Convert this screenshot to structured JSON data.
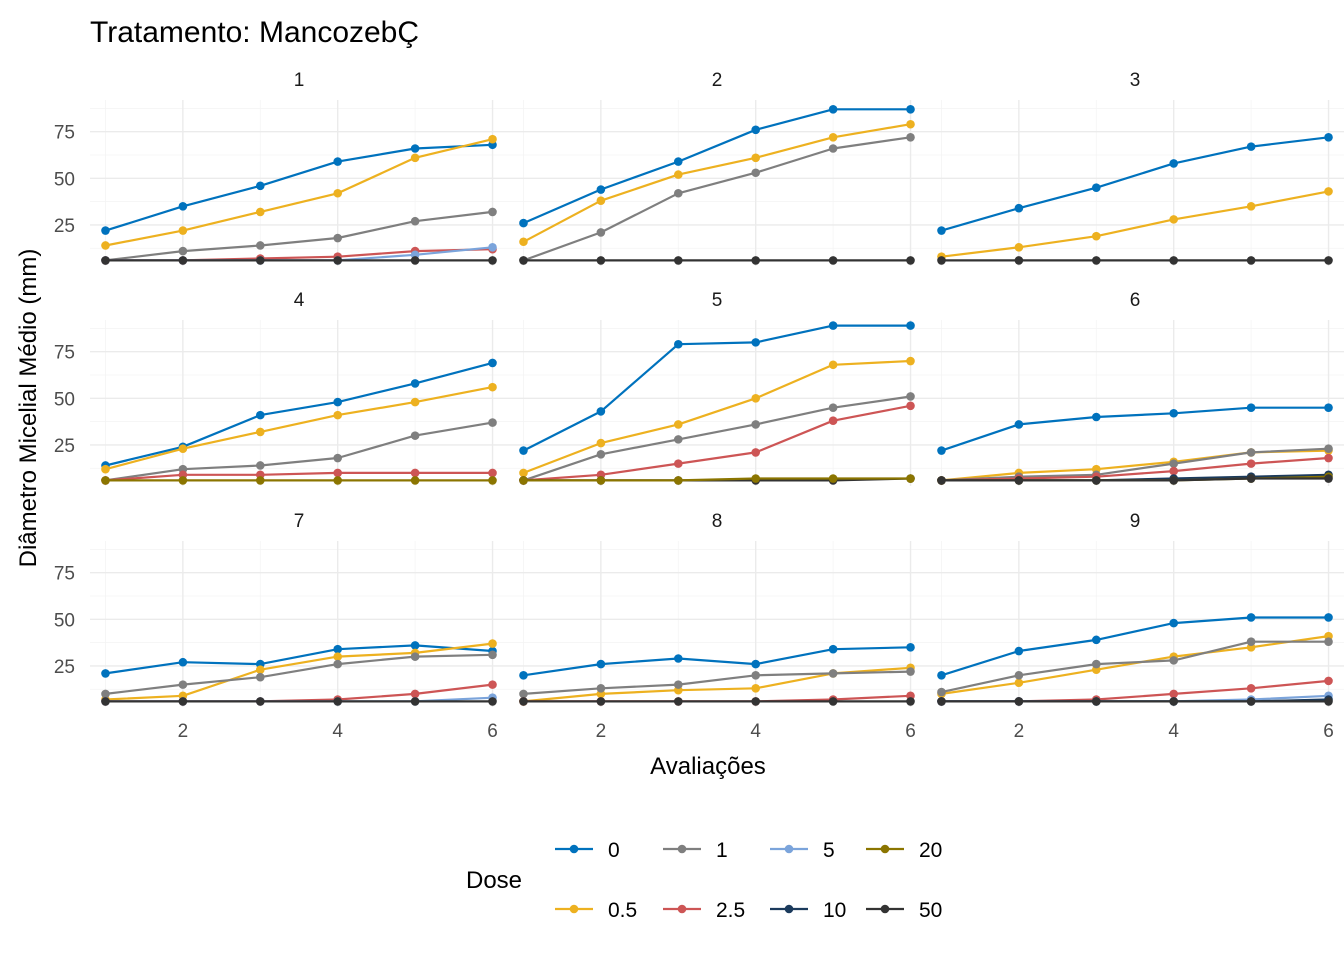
{
  "chart_data": {
    "type": "line",
    "title": "Tratamento: MancozebÇ",
    "xlabel": "Avaliações",
    "ylabel": "Diâmetro Micelial Médio (mm)",
    "xlim": [
      0.8,
      6.2
    ],
    "ylim": [
      3,
      92
    ],
    "x_ticks": [
      2,
      4,
      6
    ],
    "y_ticks": [
      25,
      50,
      75
    ],
    "grid": true,
    "legend": {
      "title": "Dose",
      "position": "bottom",
      "entries": [
        {
          "label": "0",
          "color": "#0072BD"
        },
        {
          "label": "0.5",
          "color": "#EDB120"
        },
        {
          "label": "1",
          "color": "#7F7F7F"
        },
        {
          "label": "2.5",
          "color": "#CD5555"
        },
        {
          "label": "5",
          "color": "#7BA4DB"
        },
        {
          "label": "10",
          "color": "#1B3A5C"
        },
        {
          "label": "20",
          "color": "#8B7500"
        },
        {
          "label": "50",
          "color": "#333333"
        }
      ]
    },
    "x": [
      1,
      2,
      3,
      4,
      5,
      6
    ],
    "panels": [
      {
        "label": "1",
        "series": [
          {
            "dose": "0",
            "values": [
              22,
              35,
              46,
              59,
              66,
              68
            ]
          },
          {
            "dose": "0.5",
            "values": [
              14,
              22,
              32,
              42,
              61,
              71
            ]
          },
          {
            "dose": "1",
            "values": [
              6,
              11,
              14,
              18,
              27,
              32
            ]
          },
          {
            "dose": "2.5",
            "values": [
              6,
              6,
              7,
              8,
              11,
              12
            ]
          },
          {
            "dose": "5",
            "values": [
              6,
              6,
              6,
              6,
              9,
              13
            ]
          },
          {
            "dose": "50",
            "values": [
              6,
              6,
              6,
              6,
              6,
              6
            ]
          }
        ]
      },
      {
        "label": "2",
        "series": [
          {
            "dose": "0",
            "values": [
              26,
              44,
              59,
              76,
              87,
              87
            ]
          },
          {
            "dose": "0.5",
            "values": [
              16,
              38,
              52,
              61,
              72,
              79
            ]
          },
          {
            "dose": "1",
            "values": [
              6,
              21,
              42,
              53,
              66,
              72
            ]
          },
          {
            "dose": "50",
            "values": [
              6,
              6,
              6,
              6,
              6,
              6
            ]
          }
        ]
      },
      {
        "label": "3",
        "series": [
          {
            "dose": "0",
            "values": [
              22,
              34,
              45,
              58,
              67,
              72
            ]
          },
          {
            "dose": "0.5",
            "values": [
              8,
              13,
              19,
              28,
              35,
              43
            ]
          },
          {
            "dose": "50",
            "values": [
              6,
              6,
              6,
              6,
              6,
              6
            ]
          }
        ]
      },
      {
        "label": "4",
        "series": [
          {
            "dose": "0",
            "values": [
              14,
              24,
              41,
              48,
              58,
              69
            ]
          },
          {
            "dose": "0.5",
            "values": [
              12,
              23,
              32,
              41,
              48,
              56
            ]
          },
          {
            "dose": "1",
            "values": [
              6,
              12,
              14,
              18,
              30,
              37
            ]
          },
          {
            "dose": "2.5",
            "values": [
              6,
              9,
              9,
              10,
              10,
              10
            ]
          },
          {
            "dose": "20",
            "values": [
              6,
              6,
              6,
              6,
              6,
              6
            ]
          }
        ]
      },
      {
        "label": "5",
        "series": [
          {
            "dose": "0",
            "values": [
              22,
              43,
              79,
              80,
              89,
              89
            ]
          },
          {
            "dose": "0.5",
            "values": [
              10,
              26,
              36,
              50,
              68,
              70
            ]
          },
          {
            "dose": "1",
            "values": [
              6,
              20,
              28,
              36,
              45,
              51
            ]
          },
          {
            "dose": "2.5",
            "values": [
              6,
              9,
              15,
              21,
              38,
              46
            ]
          },
          {
            "dose": "50",
            "values": [
              6,
              6,
              6,
              6,
              6,
              7
            ]
          },
          {
            "dose": "20",
            "values": [
              6,
              6,
              6,
              7,
              7,
              7
            ]
          }
        ]
      },
      {
        "label": "6",
        "series": [
          {
            "dose": "0",
            "values": [
              22,
              36,
              40,
              42,
              45,
              45
            ]
          },
          {
            "dose": "0.5",
            "values": [
              6,
              10,
              12,
              16,
              21,
              22
            ]
          },
          {
            "dose": "1",
            "values": [
              6,
              8,
              9,
              15,
              21,
              23
            ]
          },
          {
            "dose": "2.5",
            "values": [
              6,
              7,
              8,
              11,
              15,
              18
            ]
          },
          {
            "dose": "10",
            "values": [
              6,
              6,
              6,
              7,
              8,
              9
            ]
          },
          {
            "dose": "20",
            "values": [
              6,
              6,
              6,
              6,
              7,
              8
            ]
          },
          {
            "dose": "50",
            "values": [
              6,
              6,
              6,
              6,
              7,
              7
            ]
          }
        ]
      },
      {
        "label": "7",
        "series": [
          {
            "dose": "0",
            "values": [
              21,
              27,
              26,
              34,
              36,
              33
            ]
          },
          {
            "dose": "0.5",
            "values": [
              7,
              9,
              23,
              30,
              32,
              37
            ]
          },
          {
            "dose": "1",
            "values": [
              10,
              15,
              19,
              26,
              30,
              31
            ]
          },
          {
            "dose": "2.5",
            "values": [
              6,
              6,
              6,
              7,
              10,
              15
            ]
          },
          {
            "dose": "5",
            "values": [
              6,
              6,
              6,
              6,
              6,
              8
            ]
          },
          {
            "dose": "50",
            "values": [
              6,
              6,
              6,
              6,
              6,
              6
            ]
          }
        ]
      },
      {
        "label": "8",
        "series": [
          {
            "dose": "0",
            "values": [
              20,
              26,
              29,
              26,
              34,
              35
            ]
          },
          {
            "dose": "0.5",
            "values": [
              6,
              10,
              12,
              13,
              21,
              24
            ]
          },
          {
            "dose": "1",
            "values": [
              10,
              13,
              15,
              20,
              21,
              22
            ]
          },
          {
            "dose": "2.5",
            "values": [
              6,
              6,
              6,
              6,
              7,
              9
            ]
          },
          {
            "dose": "50",
            "values": [
              6,
              6,
              6,
              6,
              6,
              6
            ]
          }
        ]
      },
      {
        "label": "9",
        "series": [
          {
            "dose": "0",
            "values": [
              20,
              33,
              39,
              48,
              51,
              51
            ]
          },
          {
            "dose": "0.5",
            "values": [
              10,
              16,
              23,
              30,
              35,
              41
            ]
          },
          {
            "dose": "1",
            "values": [
              11,
              20,
              26,
              28,
              38,
              38
            ]
          },
          {
            "dose": "2.5",
            "values": [
              6,
              6,
              7,
              10,
              13,
              17
            ]
          },
          {
            "dose": "5",
            "values": [
              6,
              6,
              6,
              6,
              7,
              9
            ]
          },
          {
            "dose": "10",
            "values": [
              6,
              6,
              6,
              6,
              6,
              7
            ]
          },
          {
            "dose": "50",
            "values": [
              6,
              6,
              6,
              6,
              6,
              6
            ]
          }
        ]
      }
    ]
  }
}
